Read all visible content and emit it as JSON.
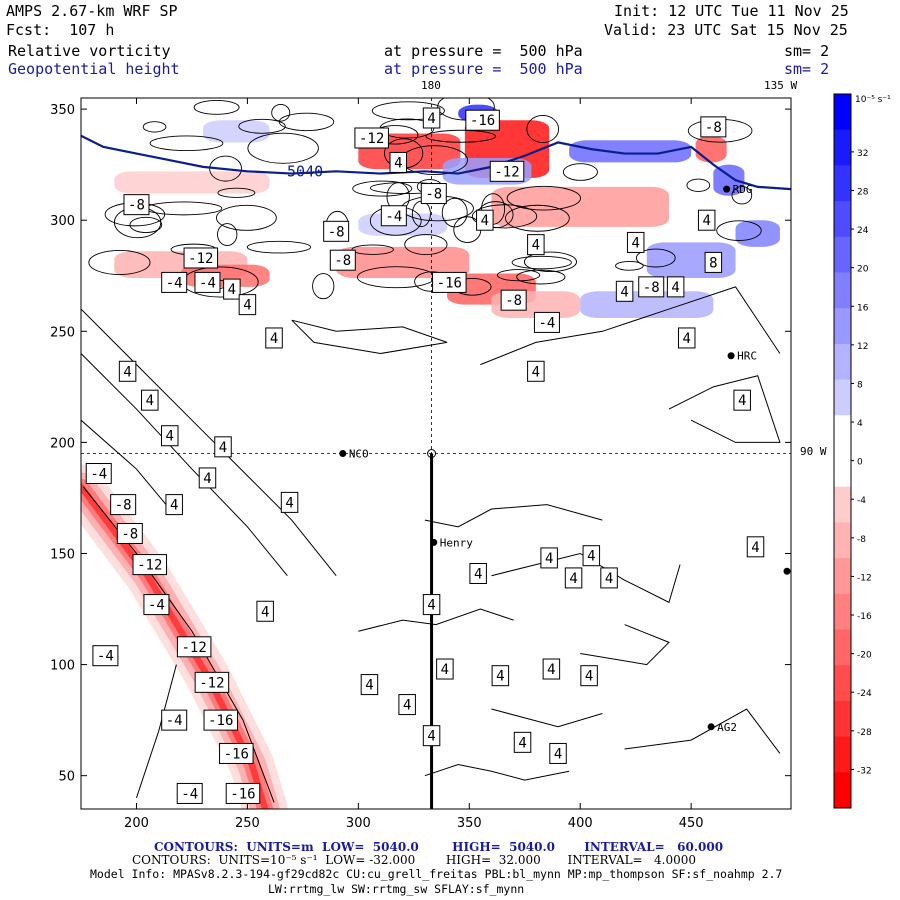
{
  "header": {
    "model": "AMPS 2.67-km WRF SP",
    "forecast": "Fcst:  107 h",
    "init": "Init: 12 UTC Tue 11 Nov 25",
    "valid": "Valid: 23 UTC Sat 15 Nov 25",
    "field1_name": "Relative vorticity",
    "field1_level": "at pressure =  500 hPa",
    "field1_smooth": "sm= 2",
    "field2_name": "Geopotential height",
    "field2_level": "at pressure =  500 hPa",
    "field2_smooth": "sm= 2",
    "lon_top_180": "180",
    "lon_top_135w": "135 W",
    "lat_right_90w": "90 W"
  },
  "colors": {
    "geopotential_line": "#0b1e8c",
    "info_blue": "#1a1aa6"
  },
  "stations": [
    {
      "name": "NCO",
      "x": 293,
      "y": 195
    },
    {
      "name": "HRC",
      "x": 468,
      "y": 239
    },
    {
      "name": "RDG",
      "x": 466,
      "y": 314
    },
    {
      "name": "Henry",
      "x": 334,
      "y": 155
    },
    {
      "name": "AG2",
      "x": 459,
      "y": 72
    }
  ],
  "chart_data": {
    "type": "contour",
    "xlim": [
      175,
      495
    ],
    "ylim": [
      35,
      355
    ],
    "x_ticks": [
      200,
      250,
      300,
      350,
      400,
      450
    ],
    "y_ticks": [
      50,
      100,
      150,
      200,
      250,
      300,
      350
    ],
    "grid_vertical_x": 333,
    "grid_horizontal_y": 195,
    "cross_section": {
      "x": 333,
      "y_start": 35,
      "y_end": 195
    },
    "colorbar": {
      "units": "10⁻⁵ s⁻¹",
      "levels": [
        32,
        28,
        24,
        20,
        16,
        12,
        8,
        4,
        0,
        -4,
        -8,
        -12,
        -16,
        -20,
        -24,
        -28,
        -32
      ],
      "colors": [
        "#0000ff",
        "#1a1aff",
        "#3333ff",
        "#4d4dff",
        "#6666ff",
        "#8080ff",
        "#9999ff",
        "#b3b3ff",
        "#ccccff",
        "#ffffff",
        "#ffffff",
        "#ffcccc",
        "#ffb3b3",
        "#ff9999",
        "#ff8080",
        "#ff6666",
        "#ff4d4d",
        "#ff3333",
        "#ff1a1a",
        "#ff0000"
      ]
    },
    "geopotential_height": {
      "label": "5040",
      "x": [
        175,
        185,
        200,
        215,
        230,
        250,
        270,
        290,
        310,
        330,
        345,
        360,
        375,
        390,
        405,
        420,
        435,
        450,
        460,
        470,
        480,
        495
      ],
      "y": [
        338,
        333,
        330,
        327,
        324,
        322,
        321,
        322,
        321,
        322,
        321,
        324,
        329,
        335,
        332,
        330,
        330,
        333,
        325,
        318,
        315,
        314
      ]
    },
    "contour_labels": [
      {
        "text": "4",
        "x": 333,
        "y": 346
      },
      {
        "text": "-12",
        "x": 306,
        "y": 337
      },
      {
        "text": "-16",
        "x": 356,
        "y": 345
      },
      {
        "text": "-8",
        "x": 460,
        "y": 342
      },
      {
        "text": "4",
        "x": 318,
        "y": 326
      },
      {
        "text": "-12",
        "x": 367,
        "y": 322
      },
      {
        "text": "-8",
        "x": 334,
        "y": 312
      },
      {
        "text": "-8",
        "x": 200,
        "y": 307
      },
      {
        "text": "-4",
        "x": 316,
        "y": 302
      },
      {
        "text": "4",
        "x": 357,
        "y": 300
      },
      {
        "text": "4",
        "x": 380,
        "y": 289
      },
      {
        "text": "-8",
        "x": 290,
        "y": 295
      },
      {
        "text": "4",
        "x": 425,
        "y": 290
      },
      {
        "text": "4",
        "x": 457,
        "y": 300
      },
      {
        "text": "-12",
        "x": 229,
        "y": 283
      },
      {
        "text": "-8",
        "x": 293,
        "y": 282
      },
      {
        "text": "8",
        "x": 460,
        "y": 281
      },
      {
        "text": "-4",
        "x": 217,
        "y": 272
      },
      {
        "text": "-4",
        "x": 232,
        "y": 272
      },
      {
        "text": "-16",
        "x": 341,
        "y": 272
      },
      {
        "text": "4",
        "x": 243,
        "y": 269
      },
      {
        "text": "-8",
        "x": 370,
        "y": 264
      },
      {
        "text": "4",
        "x": 420,
        "y": 268
      },
      {
        "text": "-8",
        "x": 432,
        "y": 270
      },
      {
        "text": "4",
        "x": 443,
        "y": 270
      },
      {
        "text": "4",
        "x": 250,
        "y": 262
      },
      {
        "text": "-4",
        "x": 385,
        "y": 254
      },
      {
        "text": "4",
        "x": 262,
        "y": 247
      },
      {
        "text": "4",
        "x": 448,
        "y": 247
      },
      {
        "text": "4",
        "x": 196,
        "y": 232
      },
      {
        "text": "4",
        "x": 380,
        "y": 232
      },
      {
        "text": "4",
        "x": 206,
        "y": 219
      },
      {
        "text": "4",
        "x": 473,
        "y": 219
      },
      {
        "text": "4",
        "x": 215,
        "y": 203
      },
      {
        "text": "4",
        "x": 239,
        "y": 198
      },
      {
        "text": "-4",
        "x": 183,
        "y": 186
      },
      {
        "text": "4",
        "x": 232,
        "y": 184
      },
      {
        "text": "-8",
        "x": 194,
        "y": 172
      },
      {
        "text": "4",
        "x": 217,
        "y": 172
      },
      {
        "text": "4",
        "x": 269,
        "y": 173
      },
      {
        "text": "-8",
        "x": 197,
        "y": 159
      },
      {
        "text": "4",
        "x": 479,
        "y": 153
      },
      {
        "text": "-12",
        "x": 206,
        "y": 145
      },
      {
        "text": "4",
        "x": 386,
        "y": 148
      },
      {
        "text": "4",
        "x": 405,
        "y": 149
      },
      {
        "text": "4",
        "x": 354,
        "y": 141
      },
      {
        "text": "4",
        "x": 397,
        "y": 139
      },
      {
        "text": "4",
        "x": 413,
        "y": 139
      },
      {
        "text": "-4",
        "x": 209,
        "y": 127
      },
      {
        "text": "4",
        "x": 258,
        "y": 124
      },
      {
        "text": "4",
        "x": 333,
        "y": 127
      },
      {
        "text": "-4",
        "x": 186,
        "y": 104
      },
      {
        "text": "-12",
        "x": 226,
        "y": 108
      },
      {
        "text": "4",
        "x": 339,
        "y": 98
      },
      {
        "text": "4",
        "x": 364,
        "y": 95
      },
      {
        "text": "4",
        "x": 305,
        "y": 91
      },
      {
        "text": "4",
        "x": 387,
        "y": 98
      },
      {
        "text": "4",
        "x": 404,
        "y": 95
      },
      {
        "text": "-12",
        "x": 234,
        "y": 92
      },
      {
        "text": "4",
        "x": 322,
        "y": 82
      },
      {
        "text": "-4",
        "x": 217,
        "y": 75
      },
      {
        "text": "-16",
        "x": 238,
        "y": 75
      },
      {
        "text": "4",
        "x": 333,
        "y": 68
      },
      {
        "text": "4",
        "x": 374,
        "y": 65
      },
      {
        "text": "4",
        "x": 390,
        "y": 60
      },
      {
        "text": "-16",
        "x": 245,
        "y": 60
      },
      {
        "text": "-4",
        "x": 224,
        "y": 42
      },
      {
        "text": "-16",
        "x": 248,
        "y": 42
      }
    ]
  },
  "footer": {
    "contours1_prefix": "CONTOURS:",
    "contours1_units": "UNITS=m",
    "contours1_low": "LOW=  5040.0",
    "contours1_high": "HIGH=  5040.0",
    "contours1_interval": "INTERVAL=   60.000",
    "contours2_prefix": "CONTOURS:",
    "contours2_units": "UNITS=10⁻⁵ s⁻¹",
    "contours2_low": "LOW= -32.000",
    "contours2_high": "HIGH=  32.000",
    "contours2_interval": "INTERVAL=   4.0000",
    "model_info": "Model Info: MPASv8.2.3-194-gf29cd82c CU:cu_grell_freitas PBL:bl_mynn MP:mp_thompson SF:sf_noahmp 2.7",
    "model_info2": "LW:rrtmg_lw SW:rrtmg_sw SFLAY:sf_mynn"
  }
}
